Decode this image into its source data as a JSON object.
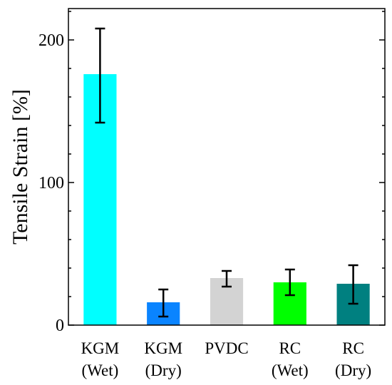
{
  "chart_data": {
    "type": "bar",
    "title": "",
    "xlabel": "",
    "ylabel": "Tensile Strain [%]",
    "ylim": [
      0,
      222
    ],
    "yticks": [
      0,
      100,
      200
    ],
    "grid": false,
    "legend": "none",
    "categories": [
      [
        "KGM",
        "(Wet)"
      ],
      [
        "KGM",
        "(Dry)"
      ],
      [
        "PVDC"
      ],
      [
        "RC",
        "(Wet)"
      ],
      [
        "RC",
        "(Dry)"
      ]
    ],
    "values": [
      176,
      16,
      33,
      30,
      29
    ],
    "error_low": [
      142,
      6,
      27,
      21,
      15
    ],
    "error_high": [
      208,
      25,
      38,
      39,
      42
    ],
    "colors": [
      "#00FFFF",
      "#0A84FF",
      "#D3D3D3",
      "#00FF00",
      "#008080"
    ]
  }
}
